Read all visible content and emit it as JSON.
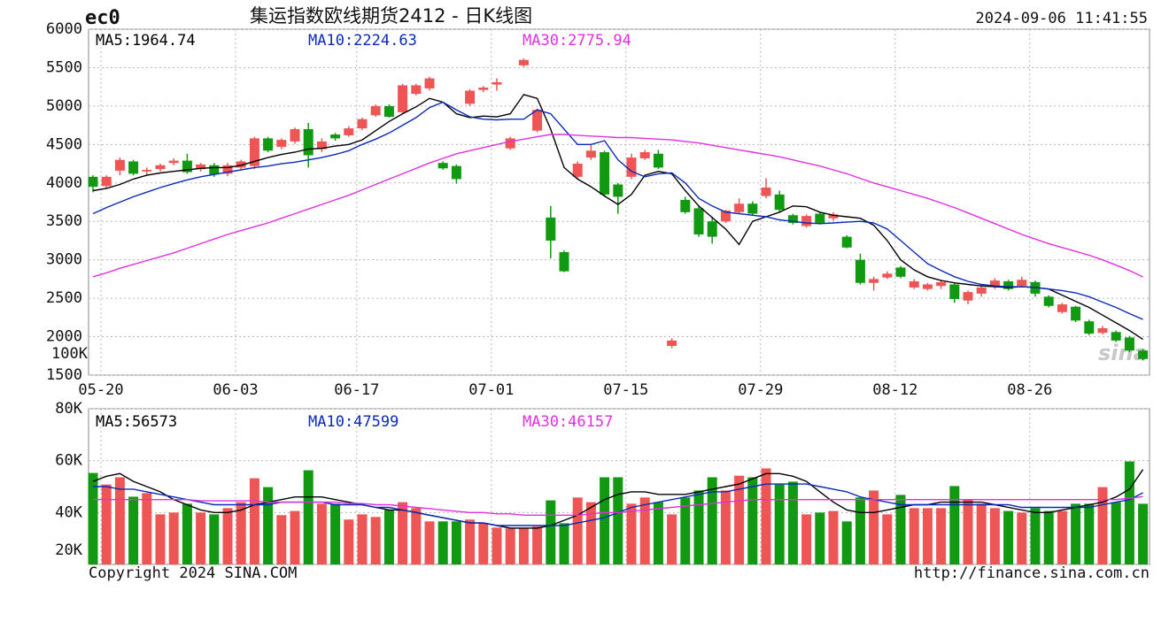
{
  "chart_data": {
    "type": "candlestick",
    "symbol": "ec0",
    "title": "集运指数欧线期货2412 - 日K线图",
    "timestamp": "2024-09-06 11:41:55",
    "categories": [
      "05-20",
      null,
      null,
      null,
      null,
      null,
      null,
      null,
      null,
      null,
      "06-03",
      null,
      null,
      null,
      null,
      null,
      null,
      null,
      null,
      "06-17",
      null,
      null,
      null,
      null,
      null,
      null,
      null,
      null,
      null,
      "07-01",
      null,
      null,
      null,
      null,
      null,
      null,
      null,
      null,
      null,
      "07-15",
      null,
      null,
      null,
      null,
      null,
      null,
      null,
      null,
      null,
      "07-29",
      null,
      null,
      null,
      null,
      null,
      null,
      null,
      null,
      null,
      "08-12",
      null,
      null,
      null,
      null,
      null,
      null,
      null,
      null,
      null,
      "08-26",
      null,
      null,
      null,
      null,
      null,
      null,
      null,
      null,
      null
    ],
    "open": [
      4080,
      3960,
      4160,
      4280,
      4150,
      4180,
      4260,
      4290,
      4180,
      4230,
      4120,
      4200,
      4220,
      4580,
      4470,
      4540,
      4700,
      4440,
      4630,
      4620,
      4710,
      4880,
      5000,
      4920,
      5160,
      5230,
      4260,
      4220,
      5030,
      5210,
      5280,
      4450,
      5530,
      4680,
      3550,
      3100,
      4080,
      4330,
      4400,
      3980,
      4080,
      4320,
      4380,
      1880,
      3780,
      3670,
      3500,
      3500,
      3620,
      3730,
      3830,
      3850,
      3580,
      3440,
      3600,
      3540,
      3300,
      3000,
      2700,
      2770,
      2900,
      2640,
      2620,
      2660,
      2680,
      2470,
      2560,
      2660,
      2720,
      2660,
      2710,
      2520,
      2320,
      2390,
      2200,
      2050,
      2060,
      1990,
      1820
    ],
    "high": [
      4100,
      4100,
      4330,
      4300,
      4200,
      4250,
      4320,
      4380,
      4260,
      4260,
      4260,
      4300,
      4600,
      4600,
      4580,
      4720,
      4780,
      4580,
      4650,
      4740,
      4850,
      5020,
      5020,
      5290,
      5290,
      5380,
      4280,
      4240,
      5220,
      5260,
      5360,
      4600,
      5620,
      4970,
      3700,
      3120,
      4280,
      4500,
      4420,
      4000,
      4380,
      4430,
      4430,
      1980,
      3820,
      3700,
      3560,
      3650,
      3800,
      3760,
      4060,
      3900,
      3600,
      3590,
      3620,
      3620,
      3320,
      3080,
      2780,
      2850,
      2920,
      2750,
      2700,
      2740,
      2700,
      2600,
      2680,
      2760,
      2740,
      2780,
      2730,
      2540,
      2440,
      2400,
      2220,
      2140,
      2080,
      2010,
      1840
    ],
    "low": [
      3880,
      3930,
      4100,
      4100,
      4100,
      4150,
      4230,
      4120,
      4150,
      4080,
      4090,
      4180,
      4180,
      4400,
      4440,
      4510,
      4200,
      4400,
      4550,
      4600,
      4690,
      4860,
      4850,
      4900,
      5140,
      5200,
      4170,
      3990,
      5000,
      5180,
      5200,
      4430,
      5510,
      4660,
      3020,
      2840,
      4050,
      4300,
      3820,
      3600,
      4050,
      4300,
      4180,
      1850,
      3600,
      3300,
      3210,
      3480,
      3600,
      3580,
      3800,
      3620,
      3460,
      3420,
      3460,
      3510,
      3150,
      2680,
      2600,
      2750,
      2760,
      2620,
      2600,
      2620,
      2440,
      2420,
      2520,
      2620,
      2600,
      2640,
      2520,
      2380,
      2300,
      2190,
      2020,
      2030,
      1930,
      1800,
      1690
    ],
    "close": [
      3950,
      4080,
      4300,
      4120,
      4170,
      4230,
      4290,
      4140,
      4240,
      4110,
      4230,
      4280,
      4580,
      4420,
      4560,
      4700,
      4360,
      4540,
      4580,
      4710,
      4830,
      5000,
      4860,
      5270,
      5270,
      5360,
      4190,
      4050,
      5200,
      5240,
      5310,
      4580,
      5600,
      4950,
      3250,
      2850,
      4250,
      4420,
      3850,
      3820,
      4330,
      4400,
      4200,
      1950,
      3620,
      3330,
      3300,
      3640,
      3730,
      3600,
      3940,
      3650,
      3480,
      3570,
      3480,
      3590,
      3160,
      2700,
      2750,
      2820,
      2780,
      2720,
      2680,
      2710,
      2490,
      2580,
      2640,
      2730,
      2620,
      2740,
      2560,
      2400,
      2420,
      2210,
      2040,
      2110,
      1950,
      1820,
      1710
    ],
    "up_color": "#ee5555",
    "down_color": "#119911",
    "ylim": [
      1500,
      6000
    ],
    "yticks": [
      1500,
      2000,
      2500,
      3000,
      3500,
      4000,
      4500,
      5000,
      5500,
      6000
    ],
    "grid": true,
    "ma": [
      {
        "label": "MA5:1964.74",
        "color": "#000000",
        "values": [
          3900,
          3930,
          3980,
          4050,
          4100,
          4130,
          4150,
          4170,
          4190,
          4200,
          4200,
          4230,
          4280,
          4330,
          4370,
          4400,
          4440,
          4450,
          4480,
          4500,
          4560,
          4680,
          4800,
          4900,
          4990,
          5100,
          5050,
          4900,
          4850,
          4870,
          4860,
          4900,
          5150,
          5100,
          4700,
          4200,
          4050,
          3950,
          3830,
          3720,
          3850,
          4100,
          4150,
          4120,
          3900,
          3700,
          3550,
          3400,
          3200,
          3500,
          3560,
          3620,
          3700,
          3690,
          3620,
          3580,
          3560,
          3540,
          3450,
          3250,
          3000,
          2870,
          2780,
          2730,
          2700,
          2680,
          2660,
          2650,
          2640,
          2650,
          2640,
          2620,
          2540,
          2460,
          2380,
          2280,
          2180,
          2080,
          1964.74
        ]
      },
      {
        "label": "MA10:2224.63",
        "color": "#0a2ab8",
        "values": [
          3600,
          3680,
          3750,
          3820,
          3880,
          3940,
          3990,
          4040,
          4080,
          4110,
          4140,
          4170,
          4200,
          4220,
          4250,
          4270,
          4300,
          4330,
          4370,
          4420,
          4500,
          4570,
          4650,
          4750,
          4850,
          4980,
          5050,
          4950,
          4860,
          4830,
          4820,
          4830,
          4830,
          4950,
          4900,
          4700,
          4500,
          4500,
          4550,
          4300,
          4150,
          4080,
          4120,
          4130,
          4000,
          3800,
          3700,
          3620,
          3600,
          3580,
          3560,
          3520,
          3500,
          3480,
          3470,
          3480,
          3490,
          3500,
          3480,
          3400,
          3250,
          3100,
          2950,
          2860,
          2780,
          2720,
          2680,
          2660,
          2650,
          2650,
          2640,
          2620,
          2600,
          2570,
          2520,
          2450,
          2380,
          2300,
          2224.63
        ]
      },
      {
        "label": "MA30:2775.94",
        "color": "#e030e0",
        "values": [
          2780,
          2830,
          2890,
          2940,
          2990,
          3040,
          3090,
          3150,
          3210,
          3270,
          3330,
          3380,
          3430,
          3480,
          3540,
          3600,
          3660,
          3720,
          3780,
          3840,
          3910,
          3980,
          4050,
          4120,
          4190,
          4260,
          4320,
          4380,
          4420,
          4460,
          4500,
          4540,
          4570,
          4600,
          4630,
          4630,
          4620,
          4610,
          4600,
          4590,
          4590,
          4580,
          4570,
          4560,
          4540,
          4520,
          4490,
          4460,
          4430,
          4400,
          4370,
          4340,
          4300,
          4260,
          4220,
          4170,
          4120,
          4060,
          4000,
          3950,
          3900,
          3850,
          3800,
          3740,
          3680,
          3610,
          3540,
          3470,
          3400,
          3330,
          3270,
          3210,
          3160,
          3110,
          3060,
          3000,
          2930,
          2860,
          2775.94
        ]
      }
    ],
    "watermark": "sina",
    "volume": {
      "ylim": [
        20000,
        80000
      ],
      "yticks": [
        {
          "value": 20000,
          "label": "20K"
        },
        {
          "value": 40000,
          "label": "40K"
        },
        {
          "value": 60000,
          "label": "60K"
        },
        {
          "value": 80000,
          "label": "80K"
        }
      ],
      "stray_label": "100K",
      "values": [
        55250,
        50800,
        53600,
        46100,
        47500,
        39300,
        40000,
        43400,
        40000,
        39300,
        41700,
        44000,
        53200,
        49800,
        39000,
        40600,
        56300,
        43400,
        43400,
        37300,
        39300,
        38300,
        41000,
        44000,
        41700,
        36600,
        36600,
        36600,
        37300,
        35900,
        34200,
        33900,
        33900,
        34600,
        44700,
        35900,
        45800,
        44000,
        53600,
        53600,
        43400,
        45800,
        44000,
        39300,
        45800,
        48500,
        53600,
        48500,
        54200,
        53600,
        57000,
        50800,
        51900,
        39300,
        40000,
        40600,
        36600,
        45800,
        48500,
        39300,
        46800,
        41700,
        41700,
        41700,
        50200,
        45000,
        43400,
        41700,
        40600,
        40000,
        41700,
        40600,
        40600,
        43400,
        43400,
        49800,
        44000,
        59700,
        43400
      ],
      "ma": [
        {
          "label": "MA5:56573",
          "color": "#000000",
          "values": [
            52000,
            54000,
            55000,
            52000,
            50000,
            48000,
            45000,
            43000,
            41000,
            40000,
            40000,
            41000,
            43000,
            44000,
            45000,
            46000,
            46000,
            46000,
            45000,
            44000,
            43000,
            42000,
            41000,
            41000,
            40000,
            39000,
            38000,
            37000,
            36000,
            36000,
            35000,
            34000,
            34000,
            34000,
            35000,
            37000,
            39000,
            42000,
            45000,
            47000,
            48000,
            48000,
            47000,
            47000,
            47000,
            48000,
            49000,
            50000,
            51000,
            53000,
            55000,
            55000,
            54000,
            52000,
            48000,
            44000,
            41000,
            40000,
            40000,
            41000,
            42000,
            43000,
            43000,
            44000,
            44000,
            44000,
            44000,
            43000,
            42000,
            41000,
            40000,
            40000,
            41000,
            42000,
            43000,
            44000,
            46000,
            49000,
            56573
          ]
        },
        {
          "label": "MA10:47599",
          "color": "#0a2ab8",
          "values": [
            50000,
            50000,
            49000,
            49000,
            48000,
            47000,
            46000,
            45000,
            44000,
            43000,
            43000,
            43000,
            43000,
            43000,
            44000,
            44000,
            44000,
            44000,
            43000,
            43000,
            43000,
            42000,
            42000,
            41000,
            40000,
            39000,
            38000,
            37000,
            36000,
            36000,
            35000,
            35000,
            35000,
            35000,
            35000,
            35000,
            36000,
            37000,
            38000,
            40000,
            42000,
            43000,
            44000,
            45000,
            46000,
            47000,
            48000,
            48000,
            49000,
            50000,
            51000,
            51000,
            51000,
            51000,
            50000,
            49000,
            48000,
            46000,
            45000,
            44000,
            43000,
            43000,
            43000,
            43000,
            43000,
            43000,
            43000,
            43000,
            43000,
            42000,
            42000,
            42000,
            42000,
            42000,
            42000,
            43000,
            44000,
            45000,
            47599
          ]
        },
        {
          "label": "MA30:46157",
          "color": "#e030e0",
          "values": [
            45000,
            45000,
            45000,
            45000,
            45000,
            45000,
            45000,
            45000,
            44500,
            44500,
            44500,
            44500,
            44500,
            44000,
            44000,
            44000,
            44000,
            44000,
            44000,
            43500,
            43500,
            43000,
            43000,
            42500,
            42000,
            41500,
            41000,
            40500,
            40000,
            40000,
            39500,
            39500,
            39000,
            39000,
            39000,
            39000,
            39000,
            39500,
            40000,
            40000,
            40500,
            41000,
            41500,
            42000,
            42500,
            43000,
            43500,
            44000,
            44500,
            45000,
            45000,
            45000,
            45000,
            45000,
            45000,
            45000,
            45000,
            45000,
            45000,
            45000,
            45000,
            45000,
            45000,
            45000,
            45000,
            45000,
            45000,
            45000,
            45000,
            45000,
            45000,
            45000,
            45000,
            45000,
            45000,
            45000,
            45000,
            45500,
            46157
          ]
        }
      ]
    },
    "copyright": "Copyright 2024 SINA.COM",
    "url": "http://finance.sina.com.cn"
  }
}
